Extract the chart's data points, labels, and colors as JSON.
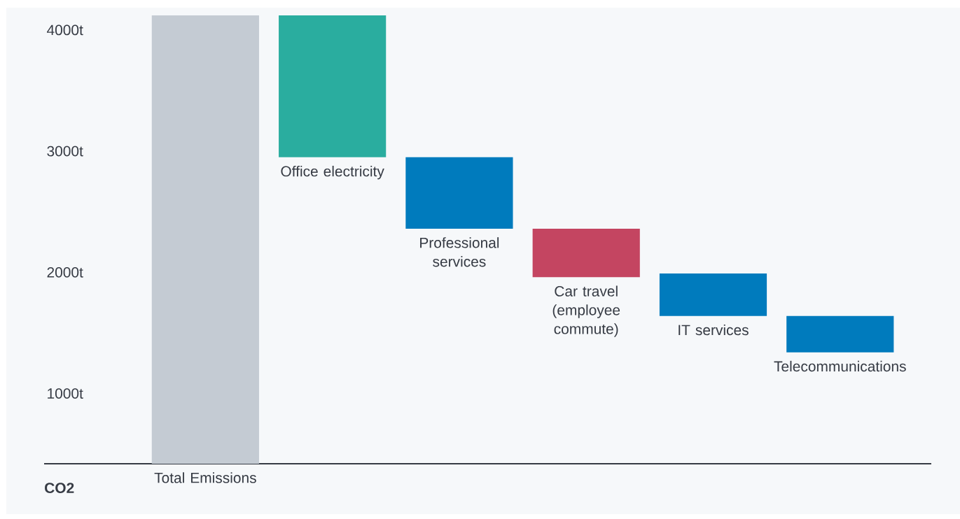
{
  "chart_data": {
    "type": "bar",
    "annotations": [
      "CO2"
    ],
    "categories": [
      "Total Emissions",
      "Office electricity",
      "Professional services",
      "Car travel (employee commute)",
      "IT services",
      "Telecommunications"
    ],
    "base": [
      420,
      2950,
      2360,
      1960,
      1640,
      1340
    ],
    "values": [
      3700,
      1170,
      590,
      400,
      350,
      300
    ],
    "colors": [
      "#c4cbd3",
      "#2aad9f",
      "#007bbd",
      "#c44561",
      "#007bbd",
      "#007bbd"
    ],
    "ylim": [
      420,
      4190
    ],
    "yticks": [
      {
        "value": 1000,
        "label": "1000t"
      },
      {
        "value": 2000,
        "label": "2000t"
      },
      {
        "value": 3000,
        "label": "3000t"
      },
      {
        "value": 4000,
        "label": "4000t"
      }
    ]
  }
}
